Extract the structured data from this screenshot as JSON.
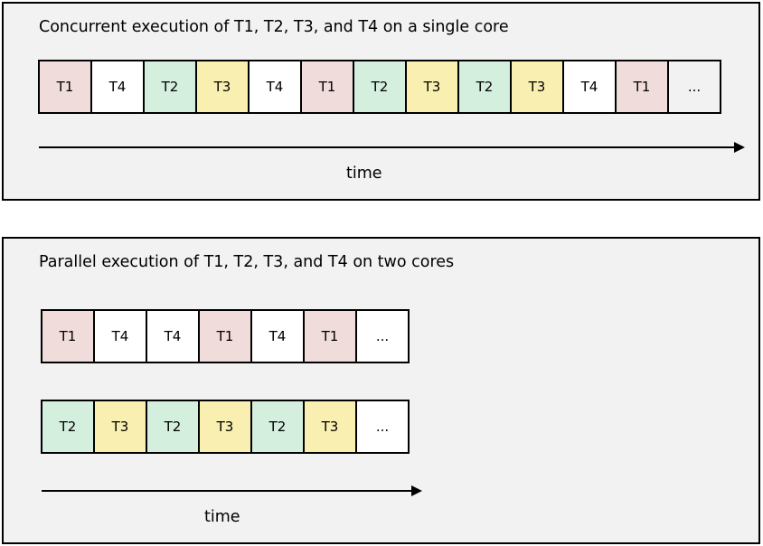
{
  "concurrent": {
    "title": "Concurrent execution of T1, T2, T3, and T4 on a single core",
    "cells": [
      "T1",
      "T4",
      "T2",
      "T3",
      "T4",
      "T1",
      "T2",
      "T3",
      "T2",
      "T3",
      "T4",
      "T1",
      "..."
    ],
    "time_label": "time"
  },
  "parallel": {
    "title": "Parallel execution of T1, T2, T3, and T4 on two cores",
    "core1_cells": [
      "T1",
      "T4",
      "T4",
      "T1",
      "T4",
      "T1",
      "..."
    ],
    "core2_cells": [
      "T2",
      "T3",
      "T2",
      "T3",
      "T2",
      "T3",
      "..."
    ],
    "time_label": "time"
  },
  "colors": {
    "T1": "#f0dcdb",
    "T2": "#d5efdf",
    "T3": "#f9efb1",
    "T4": "#ffffff",
    "panel_background": "#f2f2f2"
  }
}
